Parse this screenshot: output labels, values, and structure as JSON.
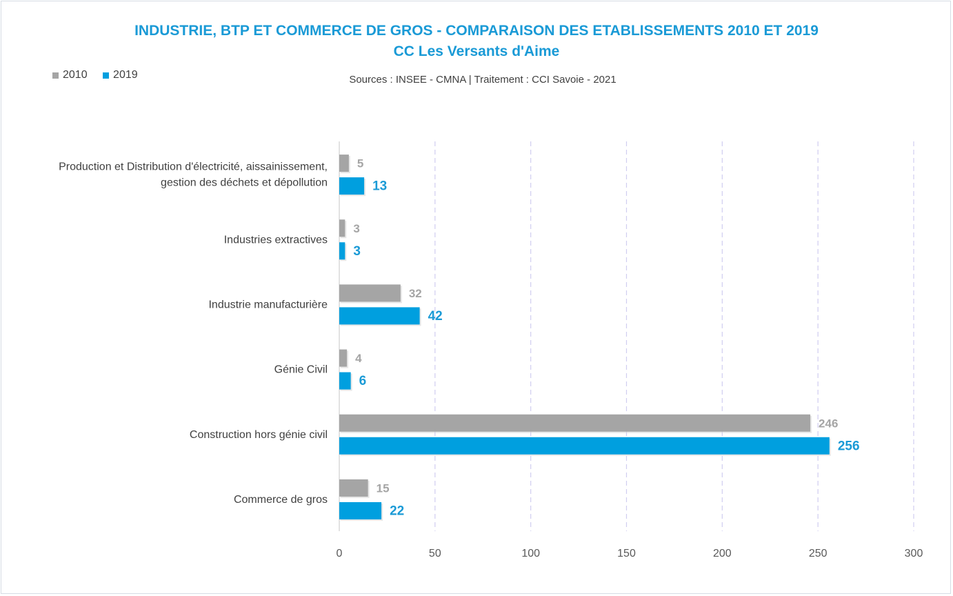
{
  "title": "INDUSTRIE, BTP ET COMMERCE DE GROS - COMPARAISON DES ETABLISSEMENTS 2010 ET 2019",
  "subtitle": "CC Les Versants d'Aime",
  "source": "Sources : INSEE - CMNA  |  Traitement : CCI Savoie - 2021",
  "colors": {
    "s2010": "#a5a5a5",
    "s2019": "#009fdf",
    "title": "#1a9ad6",
    "grid": "#d0cdf0"
  },
  "chart_data": {
    "type": "bar",
    "orientation": "horizontal",
    "title": "INDUSTRIE, BTP ET COMMERCE DE GROS - COMPARAISON DES ETABLISSEMENTS 2010 ET 2019",
    "subtitle": "CC Les Versants d'Aime",
    "categories": [
      [
        "Production et Distribution d'électricité, aissainissement,",
        "gestion des déchets et dépollution"
      ],
      [
        "Industries extractives"
      ],
      [
        "Industrie manufacturière"
      ],
      [
        "Génie Civil"
      ],
      [
        "Construction hors génie civil"
      ],
      [
        "Commerce de gros"
      ]
    ],
    "series": [
      {
        "name": "2010",
        "values": [
          5,
          3,
          32,
          4,
          246,
          15
        ]
      },
      {
        "name": "2019",
        "values": [
          13,
          3,
          42,
          6,
          256,
          22
        ]
      }
    ],
    "xlim": [
      0,
      300
    ],
    "xticks": [
      0,
      50,
      100,
      150,
      200,
      250,
      300
    ],
    "grid": true,
    "legend_position": "top-left"
  }
}
